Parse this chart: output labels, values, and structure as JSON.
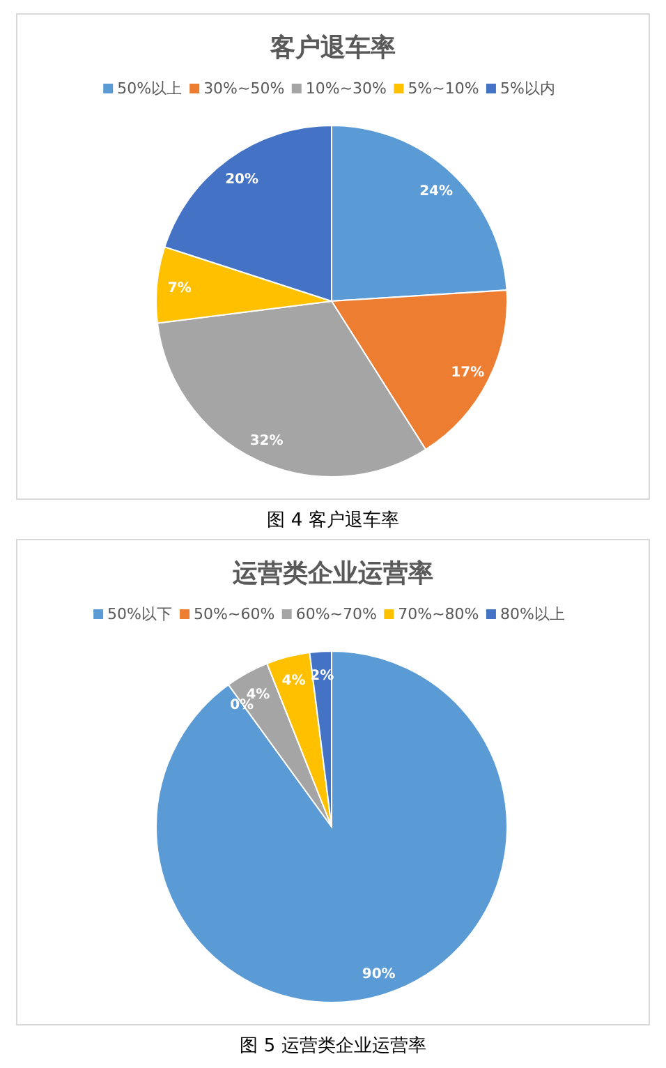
{
  "chart_data": [
    {
      "type": "pie",
      "title": "客户退车率",
      "categories": [
        "50%以上",
        "30%~50%",
        "10%~30%",
        "5%~10%",
        "5%以内"
      ],
      "values": [
        24,
        17,
        32,
        7,
        20
      ],
      "colors": [
        "#5b9bd5",
        "#ed7d31",
        "#a5a5a5",
        "#ffc000",
        "#4472c4"
      ],
      "legend": "top",
      "value_labels": [
        "24%",
        "17%",
        "32%",
        "7%",
        "20%"
      ],
      "annotations": [
        "图 4 客户退车率"
      ]
    },
    {
      "type": "pie",
      "title": "运营类企业运营率",
      "categories": [
        "50%以下",
        "50%~60%",
        "60%~70%",
        "70%~80%",
        "80%以上"
      ],
      "values": [
        90,
        0,
        4,
        4,
        2
      ],
      "colors": [
        "#5b9bd5",
        "#ed7d31",
        "#a5a5a5",
        "#ffc000",
        "#4472c4"
      ],
      "legend": "top",
      "value_labels": [
        "90%",
        "0%",
        "4%",
        "4%",
        "2%"
      ],
      "annotations": [
        "图 5 运营类企业运营率"
      ]
    }
  ]
}
